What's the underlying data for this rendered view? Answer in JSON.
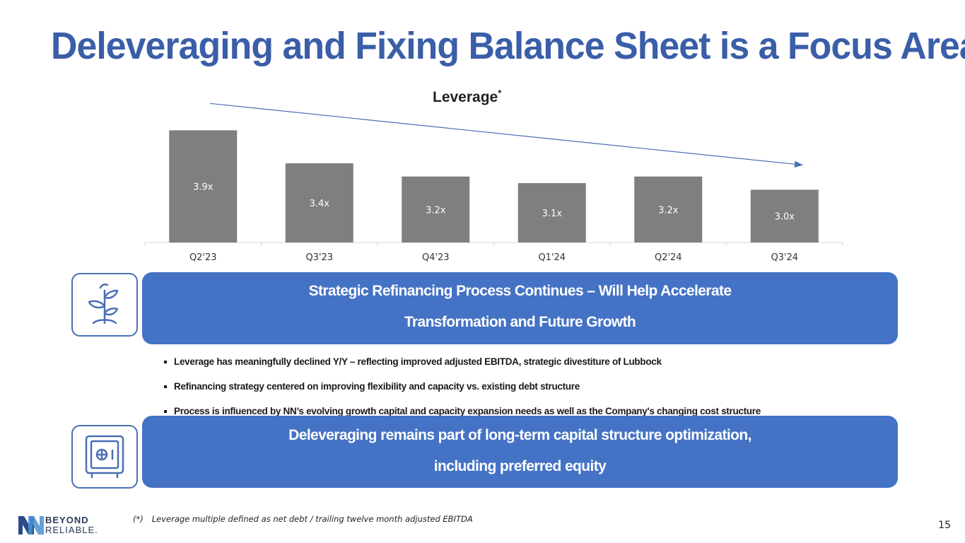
{
  "title": "Deleveraging and Fixing Balance Sheet is a Focus Area",
  "chart_title": "Leverage",
  "chart_title_mark": "*",
  "chart_data": {
    "type": "bar",
    "title": "Leverage*",
    "categories": [
      "Q2'23",
      "Q3'23",
      "Q4'23",
      "Q1'24",
      "Q2'24",
      "Q3'24"
    ],
    "values": [
      3.9,
      3.4,
      3.2,
      3.1,
      3.2,
      3.0
    ],
    "labels": [
      "3.9x",
      "3.4x",
      "3.2x",
      "3.1x",
      "3.2x",
      "3.0x"
    ],
    "ylim": [
      2.2,
      4.0
    ],
    "bar_color": "#7f7f7f",
    "trend_arrow": "downward",
    "xlabel": "",
    "ylabel": ""
  },
  "banner1": {
    "line1": "Strategic Refinancing Process Continues – Will Help Accelerate",
    "line2": "Transformation and Future Growth",
    "icon": "plant-icon"
  },
  "bullets": [
    "Leverage has meaningfully declined Y/Y – reflecting improved adjusted EBITDA, strategic divestiture of Lubbock",
    "Refinancing strategy centered on improving flexibility and capacity vs. existing debt structure",
    "Process is influenced by NN’s evolving growth capital and capacity expansion needs as well as the Company's changing cost structure"
  ],
  "banner2": {
    "line1": "Deleveraging remains part of long-term capital structure optimization,",
    "line2": "including preferred equity",
    "icon": "safe-icon"
  },
  "footnote": {
    "mark": "(*)",
    "text": "Leverage multiple defined as net debt / trailing twelve month adjusted EBITDA"
  },
  "page_number": "15",
  "logo": {
    "line1": "BEYOND",
    "line2": "RELIABLE."
  },
  "colors": {
    "title": "#3a5ea8",
    "banner": "#4472c4",
    "bar": "#7f7f7f",
    "arrow": "#4a6fb5"
  }
}
